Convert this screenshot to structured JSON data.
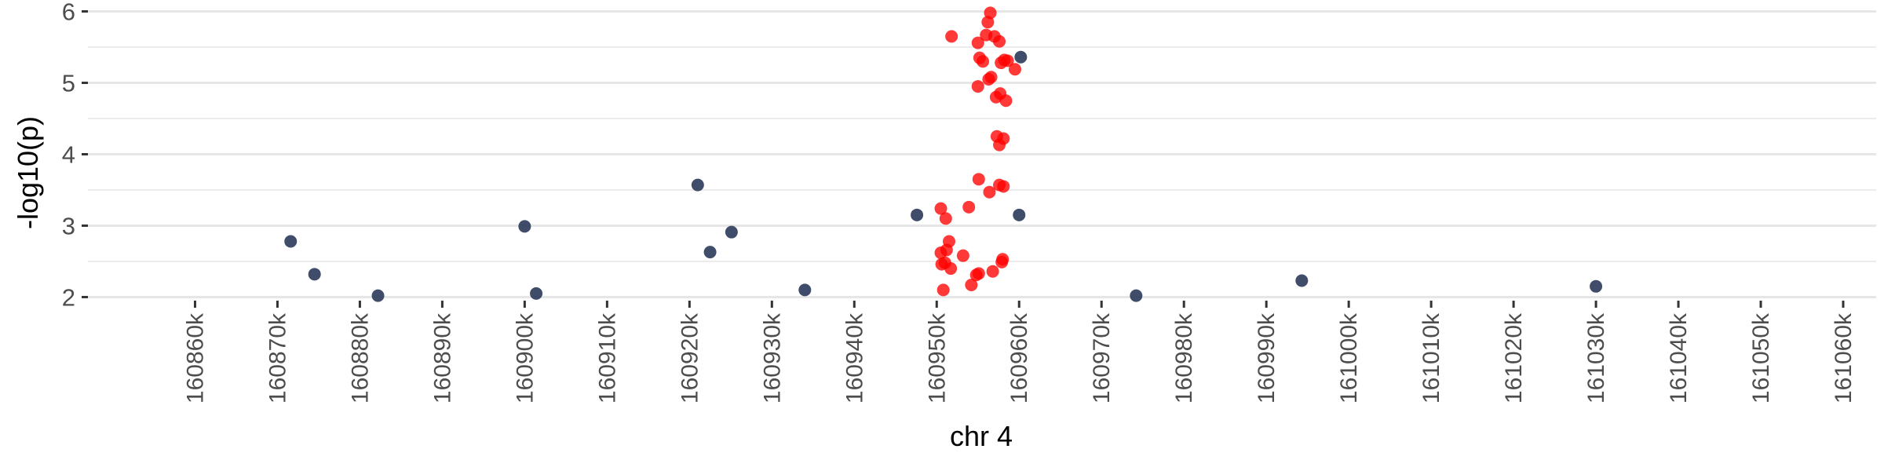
{
  "chart_data": {
    "type": "scatter",
    "xlabel": "chr 4",
    "ylabel": "-log10(p)",
    "xlim": [
      160847000,
      161064000
    ],
    "ylim": [
      1.95,
      6.05
    ],
    "x_ticks": [
      160860000,
      160870000,
      160880000,
      160890000,
      160900000,
      160910000,
      160920000,
      160930000,
      160940000,
      160950000,
      160960000,
      160970000,
      160980000,
      160990000,
      161000000,
      161010000,
      161020000,
      161030000,
      161040000,
      161050000,
      161060000
    ],
    "x_tick_labels": [
      "160860k",
      "160870k",
      "160880k",
      "160890k",
      "160900k",
      "160910k",
      "160920k",
      "160930k",
      "160940k",
      "160950k",
      "160960k",
      "160970k",
      "160980k",
      "160990k",
      "161000k",
      "161010k",
      "161020k",
      "161030k",
      "161040k",
      "161050k",
      "161060k"
    ],
    "y_ticks": [
      2,
      3,
      4,
      5,
      6
    ],
    "y_tick_labels": [
      "2",
      "3",
      "4",
      "5",
      "6"
    ],
    "grid": true,
    "legend": "none",
    "colors": {
      "background_points": "#2b3a5a",
      "highlight_points": "#ff0000",
      "grid": "#e6e6e6",
      "ticks": "#333333"
    },
    "series": [
      {
        "color": "#2b3a5a",
        "x": [
          160871600,
          160874500,
          160882200,
          160900000,
          160901400,
          160921000,
          160922500,
          160925100,
          160934000,
          160947600,
          160960000,
          160960200,
          160974200,
          160994300,
          161030000
        ],
        "y": [
          2.78,
          2.32,
          2.02,
          2.99,
          2.05,
          3.57,
          2.63,
          2.91,
          2.1,
          3.15,
          3.15,
          5.36,
          2.02,
          2.23,
          2.15
        ]
      },
      {
        "color": "#ff0000",
        "x": [
          160956500,
          160956200,
          160951800,
          160955000,
          160957000,
          160956000,
          160957600,
          160955200,
          160955600,
          160958200,
          160957800,
          160958600,
          160959500,
          160956600,
          160956300,
          160955000,
          160957700,
          160957200,
          160958400,
          160957300,
          160957600,
          160958100,
          160955100,
          160957600,
          160958100,
          160956400,
          160950500,
          160951100,
          160953900,
          160951500,
          160950500,
          160951200,
          160953200,
          160951000,
          160950600,
          160951700,
          160958000,
          160957900,
          160956800,
          160955100,
          160954800,
          160954200,
          160950800
        ],
        "y": [
          5.98,
          5.85,
          5.65,
          5.56,
          5.65,
          5.67,
          5.58,
          5.35,
          5.3,
          5.32,
          5.28,
          5.31,
          5.19,
          5.08,
          5.05,
          4.95,
          4.85,
          4.8,
          4.75,
          4.25,
          4.13,
          4.22,
          3.65,
          3.57,
          3.55,
          3.47,
          3.24,
          3.1,
          3.26,
          2.78,
          2.62,
          2.66,
          2.58,
          2.48,
          2.46,
          2.4,
          2.53,
          2.49,
          2.36,
          2.33,
          2.31,
          2.17,
          2.1
        ]
      }
    ]
  }
}
